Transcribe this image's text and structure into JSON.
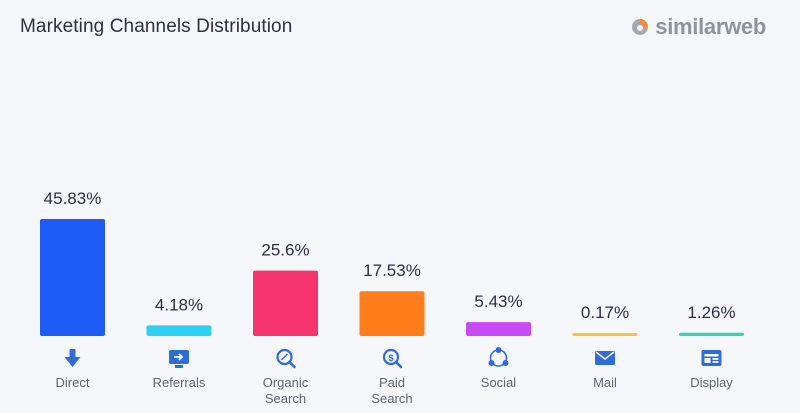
{
  "header": {
    "title": "Marketing Channels Distribution",
    "brand": "similarweb"
  },
  "colors": {
    "direct": "#1f5cf5",
    "referrals": "#2fd0f2",
    "organic_search": "#f5336c",
    "paid_search": "#ff7d1a",
    "social": "#c54cf5",
    "mail": "#ffc043",
    "display": "#2fd6b0",
    "icon": "#2f6bd9",
    "brand_orange": "#f28a3c"
  },
  "chart_data": {
    "type": "bar",
    "title": "Marketing Channels Distribution",
    "xlabel": "",
    "ylabel": "",
    "grid": false,
    "categories": [
      [
        "Direct"
      ],
      [
        "Referrals"
      ],
      [
        "Organic",
        "Search"
      ],
      [
        "Paid",
        "Search"
      ],
      [
        "Social"
      ],
      [
        "Mail"
      ],
      [
        "Display"
      ]
    ],
    "values": [
      45.83,
      4.18,
      25.6,
      17.53,
      5.43,
      0.17,
      1.26
    ],
    "value_labels": [
      "45.83%",
      "4.18%",
      "25.6%",
      "17.53%",
      "5.43%",
      "0.17%",
      "1.26%"
    ],
    "icons": [
      "arrow-down-icon",
      "referral-screen-icon",
      "search-magnifier-icon",
      "paid-search-icon",
      "social-network-icon",
      "mail-icon",
      "display-icon"
    ],
    "ylim": [
      0,
      45.83
    ]
  }
}
